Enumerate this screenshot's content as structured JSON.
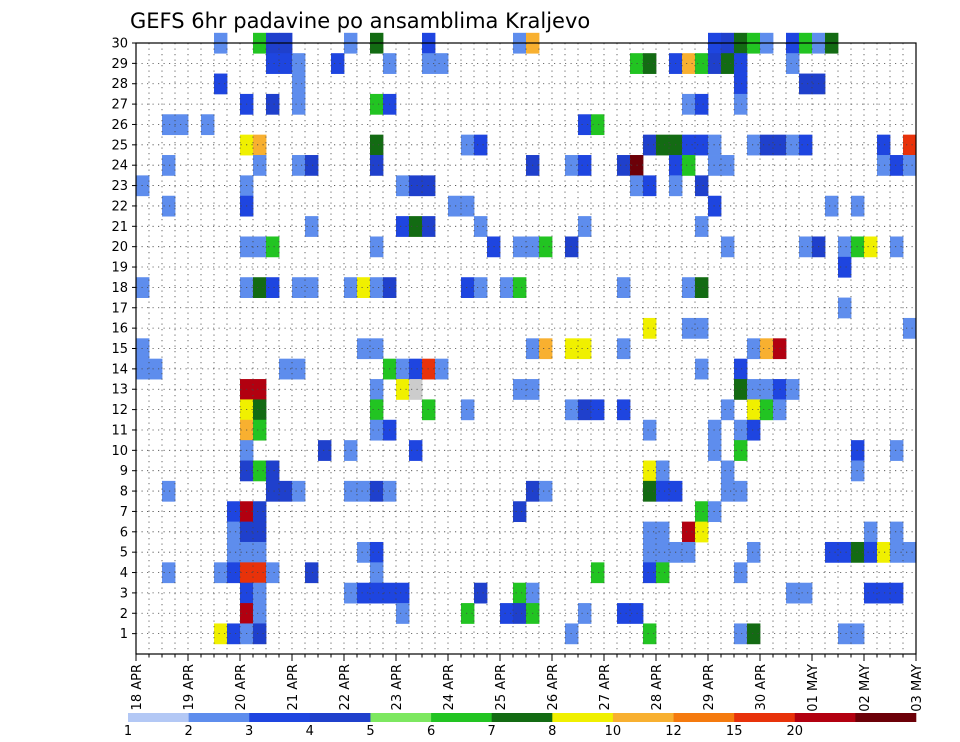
{
  "chart_data": {
    "type": "heatmap",
    "title": "GEFS 6hr padavine po ansamblima Kraljevo",
    "xlabel": "",
    "ylabel": "",
    "x_tick_labels": [
      "18 APR",
      "19 APR",
      "20 APR",
      "21 APR",
      "22 APR",
      "23 APR",
      "24 APR",
      "25 APR",
      "26 APR",
      "27 APR",
      "28 APR",
      "29 APR",
      "30 APR",
      "01 MAY",
      "02 MAY",
      "03 MAY"
    ],
    "y_tick_labels": [
      "1",
      "2",
      "3",
      "4",
      "5",
      "6",
      "7",
      "8",
      "9",
      "10",
      "11",
      "12",
      "13",
      "14",
      "15",
      "16",
      "17",
      "18",
      "19",
      "20",
      "21",
      "22",
      "23",
      "24",
      "25",
      "26",
      "27",
      "28",
      "29",
      "30"
    ],
    "y_range": [
      0,
      30
    ],
    "x_steps_per_day": 4,
    "grid": true,
    "colorbar": {
      "labels": [
        "1",
        "2",
        "3",
        "4",
        "5",
        "6",
        "7",
        "8",
        "10",
        "12",
        "15",
        "20"
      ],
      "colors": [
        "#b3c8f5",
        "#5e8ded",
        "#1e45e0",
        "#1f40cc",
        "#7de860",
        "#22c422",
        "#136b13",
        "#f0f000",
        "#f8b030",
        "#f57a0e",
        "#e8320a",
        "#b20010",
        "#6c0008"
      ]
    },
    "cells": [
      [
        6,
        30,
        1
      ],
      [
        9,
        30,
        5
      ],
      [
        10,
        30,
        3
      ],
      [
        11,
        30,
        3
      ],
      [
        16,
        30,
        1
      ],
      [
        18,
        30,
        6
      ],
      [
        22,
        30,
        2
      ],
      [
        29,
        30,
        1
      ],
      [
        30,
        30,
        8
      ],
      [
        44,
        30,
        2
      ],
      [
        45,
        30,
        3
      ],
      [
        46,
        30,
        6
      ],
      [
        47,
        30,
        5
      ],
      [
        48,
        30,
        1
      ],
      [
        50,
        30,
        2
      ],
      [
        51,
        30,
        5
      ],
      [
        52,
        30,
        1
      ],
      [
        53,
        30,
        6
      ],
      [
        10,
        29,
        2
      ],
      [
        11,
        29,
        2
      ],
      [
        12,
        29,
        1
      ],
      [
        15,
        29,
        2
      ],
      [
        19,
        29,
        1
      ],
      [
        22,
        29,
        1
      ],
      [
        23,
        29,
        1
      ],
      [
        38,
        29,
        5
      ],
      [
        39,
        29,
        6
      ],
      [
        41,
        29,
        2
      ],
      [
        42,
        29,
        8
      ],
      [
        43,
        29,
        5
      ],
      [
        44,
        29,
        3
      ],
      [
        45,
        29,
        6
      ],
      [
        46,
        29,
        2
      ],
      [
        50,
        29,
        1
      ],
      [
        6,
        28,
        2
      ],
      [
        12,
        28,
        1
      ],
      [
        46,
        28,
        2
      ],
      [
        51,
        28,
        3
      ],
      [
        52,
        28,
        3
      ],
      [
        8,
        27,
        2
      ],
      [
        10,
        27,
        3
      ],
      [
        12,
        27,
        1
      ],
      [
        18,
        27,
        5
      ],
      [
        19,
        27,
        2
      ],
      [
        42,
        27,
        1
      ],
      [
        43,
        27,
        2
      ],
      [
        46,
        27,
        1
      ],
      [
        2,
        26,
        1
      ],
      [
        3,
        26,
        1
      ],
      [
        5,
        26,
        1
      ],
      [
        34,
        26,
        2
      ],
      [
        35,
        26,
        5
      ],
      [
        8,
        25,
        7
      ],
      [
        9,
        25,
        8
      ],
      [
        18,
        25,
        6
      ],
      [
        25,
        25,
        1
      ],
      [
        26,
        25,
        2
      ],
      [
        39,
        25,
        3
      ],
      [
        40,
        25,
        6
      ],
      [
        41,
        25,
        6
      ],
      [
        42,
        25,
        2
      ],
      [
        43,
        25,
        2
      ],
      [
        44,
        25,
        1
      ],
      [
        47,
        25,
        1
      ],
      [
        48,
        25,
        3
      ],
      [
        49,
        25,
        3
      ],
      [
        50,
        25,
        1
      ],
      [
        51,
        25,
        2
      ],
      [
        57,
        25,
        2
      ],
      [
        59,
        25,
        10
      ],
      [
        2,
        24,
        1
      ],
      [
        9,
        24,
        1
      ],
      [
        12,
        24,
        1
      ],
      [
        13,
        24,
        3
      ],
      [
        18,
        24,
        3
      ],
      [
        30,
        24,
        3
      ],
      [
        33,
        24,
        1
      ],
      [
        34,
        24,
        2
      ],
      [
        37,
        24,
        3
      ],
      [
        38,
        24,
        12
      ],
      [
        41,
        24,
        2
      ],
      [
        42,
        24,
        5
      ],
      [
        44,
        24,
        1
      ],
      [
        45,
        24,
        1
      ],
      [
        57,
        24,
        1
      ],
      [
        58,
        24,
        2
      ],
      [
        59,
        24,
        1
      ],
      [
        0,
        23,
        1
      ],
      [
        8,
        23,
        1
      ],
      [
        20,
        23,
        1
      ],
      [
        21,
        23,
        3
      ],
      [
        22,
        23,
        3
      ],
      [
        38,
        23,
        1
      ],
      [
        39,
        23,
        2
      ],
      [
        41,
        23,
        1
      ],
      [
        43,
        23,
        3
      ],
      [
        2,
        22,
        1
      ],
      [
        8,
        22,
        2
      ],
      [
        24,
        22,
        1
      ],
      [
        25,
        22,
        1
      ],
      [
        44,
        22,
        2
      ],
      [
        53,
        22,
        1
      ],
      [
        55,
        22,
        1
      ],
      [
        13,
        21,
        1
      ],
      [
        20,
        21,
        2
      ],
      [
        21,
        21,
        6
      ],
      [
        22,
        21,
        3
      ],
      [
        26,
        21,
        1
      ],
      [
        34,
        21,
        1
      ],
      [
        43,
        21,
        1
      ],
      [
        8,
        20,
        1
      ],
      [
        9,
        20,
        1
      ],
      [
        10,
        20,
        5
      ],
      [
        18,
        20,
        1
      ],
      [
        27,
        20,
        2
      ],
      [
        29,
        20,
        1
      ],
      [
        30,
        20,
        1
      ],
      [
        31,
        20,
        5
      ],
      [
        33,
        20,
        3
      ],
      [
        45,
        20,
        1
      ],
      [
        51,
        20,
        1
      ],
      [
        52,
        20,
        3
      ],
      [
        54,
        20,
        1
      ],
      [
        55,
        20,
        5
      ],
      [
        56,
        20,
        7
      ],
      [
        58,
        20,
        1
      ],
      [
        54,
        19,
        2
      ],
      [
        0,
        18,
        1
      ],
      [
        8,
        18,
        1
      ],
      [
        9,
        18,
        6
      ],
      [
        10,
        18,
        2
      ],
      [
        12,
        18,
        1
      ],
      [
        13,
        18,
        1
      ],
      [
        16,
        18,
        1
      ],
      [
        17,
        18,
        7
      ],
      [
        18,
        18,
        1
      ],
      [
        19,
        18,
        3
      ],
      [
        25,
        18,
        2
      ],
      [
        26,
        18,
        1
      ],
      [
        28,
        18,
        1
      ],
      [
        29,
        18,
        5
      ],
      [
        37,
        18,
        1
      ],
      [
        42,
        18,
        1
      ],
      [
        43,
        18,
        6
      ],
      [
        54,
        17,
        1
      ],
      [
        39,
        16,
        7
      ],
      [
        42,
        16,
        1
      ],
      [
        43,
        16,
        1
      ],
      [
        59,
        16,
        1
      ],
      [
        0,
        15,
        1
      ],
      [
        17,
        15,
        1
      ],
      [
        18,
        15,
        1
      ],
      [
        30,
        15,
        1
      ],
      [
        31,
        15,
        8
      ],
      [
        33,
        15,
        7
      ],
      [
        34,
        15,
        7
      ],
      [
        37,
        15,
        1
      ],
      [
        47,
        15,
        1
      ],
      [
        48,
        15,
        8
      ],
      [
        49,
        15,
        11
      ],
      [
        0,
        14,
        1
      ],
      [
        1,
        14,
        1
      ],
      [
        11,
        14,
        1
      ],
      [
        12,
        14,
        1
      ],
      [
        19,
        14,
        5
      ],
      [
        20,
        14,
        1
      ],
      [
        21,
        14,
        2
      ],
      [
        22,
        14,
        10
      ],
      [
        23,
        14,
        1
      ],
      [
        43,
        14,
        1
      ],
      [
        46,
        14,
        2
      ],
      [
        8,
        13,
        11
      ],
      [
        9,
        13,
        11
      ],
      [
        18,
        13,
        1
      ],
      [
        20,
        13,
        7
      ],
      [
        21,
        13,
        13
      ],
      [
        29,
        13,
        1
      ],
      [
        30,
        13,
        1
      ],
      [
        46,
        13,
        6
      ],
      [
        47,
        13,
        1
      ],
      [
        48,
        13,
        1
      ],
      [
        49,
        13,
        2
      ],
      [
        50,
        13,
        1
      ],
      [
        8,
        12,
        7
      ],
      [
        9,
        12,
        6
      ],
      [
        18,
        12,
        5
      ],
      [
        22,
        12,
        5
      ],
      [
        25,
        12,
        1
      ],
      [
        33,
        12,
        1
      ],
      [
        34,
        12,
        3
      ],
      [
        35,
        12,
        2
      ],
      [
        37,
        12,
        2
      ],
      [
        45,
        12,
        1
      ],
      [
        47,
        12,
        7
      ],
      [
        48,
        12,
        5
      ],
      [
        49,
        12,
        1
      ],
      [
        8,
        11,
        8
      ],
      [
        9,
        11,
        5
      ],
      [
        18,
        11,
        1
      ],
      [
        19,
        11,
        2
      ],
      [
        39,
        11,
        1
      ],
      [
        44,
        11,
        1
      ],
      [
        46,
        11,
        1
      ],
      [
        47,
        11,
        2
      ],
      [
        8,
        10,
        1
      ],
      [
        14,
        10,
        3
      ],
      [
        16,
        10,
        1
      ],
      [
        21,
        10,
        2
      ],
      [
        44,
        10,
        1
      ],
      [
        46,
        10,
        5
      ],
      [
        55,
        10,
        2
      ],
      [
        58,
        10,
        1
      ],
      [
        8,
        9,
        3
      ],
      [
        9,
        9,
        5
      ],
      [
        10,
        9,
        3
      ],
      [
        39,
        9,
        7
      ],
      [
        40,
        9,
        1
      ],
      [
        45,
        9,
        1
      ],
      [
        55,
        9,
        1
      ],
      [
        2,
        8,
        1
      ],
      [
        10,
        8,
        3
      ],
      [
        11,
        8,
        3
      ],
      [
        12,
        8,
        1
      ],
      [
        16,
        8,
        1
      ],
      [
        17,
        8,
        1
      ],
      [
        18,
        8,
        3
      ],
      [
        19,
        8,
        1
      ],
      [
        30,
        8,
        3
      ],
      [
        31,
        8,
        1
      ],
      [
        39,
        8,
        6
      ],
      [
        40,
        8,
        2
      ],
      [
        41,
        8,
        2
      ],
      [
        45,
        8,
        1
      ],
      [
        46,
        8,
        1
      ],
      [
        7,
        7,
        2
      ],
      [
        8,
        7,
        11
      ],
      [
        9,
        7,
        3
      ],
      [
        29,
        7,
        3
      ],
      [
        43,
        7,
        5
      ],
      [
        44,
        7,
        1
      ],
      [
        7,
        6,
        1
      ],
      [
        8,
        6,
        3
      ],
      [
        9,
        6,
        3
      ],
      [
        39,
        6,
        1
      ],
      [
        40,
        6,
        1
      ],
      [
        42,
        6,
        11
      ],
      [
        43,
        6,
        7
      ],
      [
        56,
        6,
        1
      ],
      [
        58,
        6,
        1
      ],
      [
        7,
        5,
        1
      ],
      [
        8,
        5,
        1
      ],
      [
        9,
        5,
        1
      ],
      [
        17,
        5,
        1
      ],
      [
        18,
        5,
        2
      ],
      [
        39,
        5,
        1
      ],
      [
        40,
        5,
        1
      ],
      [
        41,
        5,
        1
      ],
      [
        42,
        5,
        1
      ],
      [
        47,
        5,
        1
      ],
      [
        53,
        5,
        2
      ],
      [
        54,
        5,
        2
      ],
      [
        55,
        5,
        6
      ],
      [
        56,
        5,
        2
      ],
      [
        57,
        5,
        7
      ],
      [
        58,
        5,
        1
      ],
      [
        59,
        5,
        1
      ],
      [
        2,
        4,
        1
      ],
      [
        6,
        4,
        1
      ],
      [
        7,
        4,
        2
      ],
      [
        8,
        4,
        10
      ],
      [
        9,
        4,
        10
      ],
      [
        10,
        4,
        1
      ],
      [
        13,
        4,
        3
      ],
      [
        18,
        4,
        1
      ],
      [
        35,
        4,
        5
      ],
      [
        39,
        4,
        2
      ],
      [
        40,
        4,
        5
      ],
      [
        46,
        4,
        1
      ],
      [
        8,
        3,
        2
      ],
      [
        9,
        3,
        1
      ],
      [
        16,
        3,
        1
      ],
      [
        17,
        3,
        2
      ],
      [
        18,
        3,
        2
      ],
      [
        19,
        3,
        2
      ],
      [
        20,
        3,
        2
      ],
      [
        26,
        3,
        3
      ],
      [
        29,
        3,
        5
      ],
      [
        30,
        3,
        1
      ],
      [
        50,
        3,
        1
      ],
      [
        51,
        3,
        1
      ],
      [
        56,
        3,
        2
      ],
      [
        57,
        3,
        2
      ],
      [
        58,
        3,
        2
      ],
      [
        8,
        2,
        11
      ],
      [
        9,
        2,
        1
      ],
      [
        20,
        2,
        1
      ],
      [
        25,
        2,
        5
      ],
      [
        28,
        2,
        2
      ],
      [
        29,
        2,
        3
      ],
      [
        30,
        2,
        5
      ],
      [
        34,
        2,
        1
      ],
      [
        37,
        2,
        2
      ],
      [
        38,
        2,
        2
      ],
      [
        6,
        1,
        7
      ],
      [
        7,
        1,
        2
      ],
      [
        8,
        1,
        1
      ],
      [
        9,
        1,
        3
      ],
      [
        33,
        1,
        1
      ],
      [
        39,
        1,
        5
      ],
      [
        46,
        1,
        1
      ],
      [
        47,
        1,
        6
      ],
      [
        54,
        1,
        1
      ],
      [
        55,
        1,
        1
      ]
    ]
  }
}
